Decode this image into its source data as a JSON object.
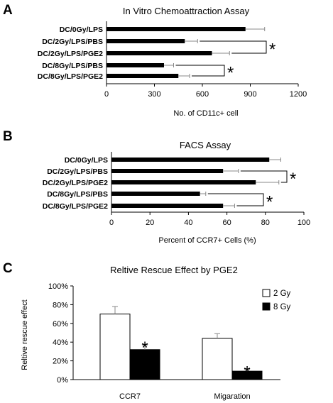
{
  "panels": [
    {
      "label": "A",
      "chart_data": {
        "type": "bar",
        "orientation": "horizontal",
        "title": "In Vitro Chemoattraction  Assay",
        "xlabel": "No. of CD11c+ cell",
        "ylabel": "",
        "categories": [
          "DC/0Gy/LPS",
          "DC/2Gy/LPS/PBS",
          "DC/2Gy/LPS/PGE2",
          "DC/8Gy/LPS/PBS",
          "DC/8Gy/LPS/PGE2"
        ],
        "values": [
          870,
          490,
          660,
          360,
          450
        ],
        "errors": [
          120,
          80,
          110,
          60,
          70
        ],
        "xlim": [
          0,
          1200
        ],
        "xticks": [
          "0",
          "300",
          "600",
          "900",
          "1200"
        ],
        "bar_color": "#000000",
        "grid": false,
        "significance": [
          {
            "between": [
              "DC/2Gy/LPS/PBS",
              "DC/2Gy/LPS/PGE2"
            ],
            "mark": "*"
          },
          {
            "between": [
              "DC/8Gy/LPS/PBS",
              "DC/8Gy/LPS/PGE2"
            ],
            "mark": "*"
          }
        ]
      }
    },
    {
      "label": "B",
      "chart_data": {
        "type": "bar",
        "orientation": "horizontal",
        "title": "FACS Assay",
        "xlabel": "Percent of CCR7+ Cells (%)",
        "ylabel": "",
        "categories": [
          "DC/0Gy/LPS",
          "DC/2Gy/LPS/PBS",
          "DC/2Gy/LPS/PGE2",
          "DC/8Gy/LPS/PBS",
          "DC/8Gy/LPS/PGE2"
        ],
        "values": [
          82,
          58,
          75,
          46,
          58
        ],
        "errors": [
          6,
          8,
          12,
          3,
          6
        ],
        "xlim": [
          0,
          100
        ],
        "xticks": [
          "0",
          "20",
          "40",
          "60",
          "80",
          "100"
        ],
        "bar_color": "#000000",
        "grid": false,
        "significance": [
          {
            "between": [
              "DC/2Gy/LPS/PBS",
              "DC/2Gy/LPS/PGE2"
            ],
            "mark": "*"
          },
          {
            "between": [
              "DC/8Gy/LPS/PBS",
              "DC/8Gy/LPS/PGE2"
            ],
            "mark": "*"
          }
        ]
      }
    },
    {
      "label": "C",
      "chart_data": {
        "type": "bar",
        "orientation": "vertical",
        "title": "Reltive Rescue Effect by PGE2",
        "xlabel": "",
        "ylabel": "Reltive rescue effect",
        "categories": [
          "CCR7",
          "Migaration"
        ],
        "series": [
          {
            "name": "2 Gy",
            "values": [
              70,
              44
            ],
            "errors": [
              8,
              5
            ],
            "color": "#ffffff"
          },
          {
            "name": "8 Gy",
            "values": [
              32,
              9
            ],
            "errors": [
              5,
              2
            ],
            "color": "#000000"
          }
        ],
        "ylim": [
          0,
          100
        ],
        "yticks": [
          "0%",
          "20%",
          "40%",
          "60%",
          "80%",
          "100%"
        ],
        "legend_position": "top-right",
        "grid": false,
        "significance": [
          {
            "category": "CCR7",
            "series": "8 Gy",
            "mark": "*"
          },
          {
            "category": "Migaration",
            "series": "8 Gy",
            "mark": "*"
          }
        ]
      }
    }
  ]
}
